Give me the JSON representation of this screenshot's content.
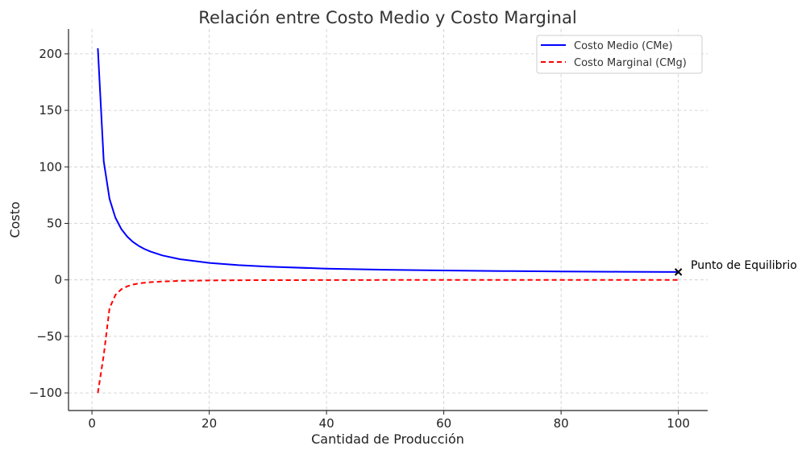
{
  "chart_data": {
    "type": "line",
    "title": "Relación entre Costo Medio y Costo Marginal",
    "xlabel": "Cantidad de Producción",
    "ylabel": "Costo",
    "xlim": [
      -4,
      105
    ],
    "ylim": [
      -115.6,
      222
    ],
    "xticks": [
      0,
      20,
      40,
      60,
      80,
      100
    ],
    "yticks": [
      -100,
      -50,
      0,
      50,
      100,
      150,
      200
    ],
    "ytick_labels": [
      "−100",
      "−50",
      "0",
      "50",
      "100",
      "150",
      "200"
    ],
    "grid": true,
    "legend_position": "top-right",
    "series": [
      {
        "name": "Costo Medio (CMe)",
        "color": "#0000ff",
        "style": "solid",
        "x": [
          1,
          2,
          3,
          4,
          5,
          6,
          7,
          8,
          9,
          10,
          12,
          15,
          20,
          25,
          30,
          40,
          50,
          60,
          70,
          80,
          90,
          100
        ],
        "y": [
          205,
          105,
          71.67,
          55,
          45,
          38.33,
          33.57,
          30,
          27.22,
          25,
          21.67,
          18.33,
          15,
          13,
          11.67,
          10,
          9,
          8.33,
          7.86,
          7.5,
          7.22,
          7
        ]
      },
      {
        "name": "Costo Marginal (CMg)",
        "color": "#ff0000",
        "style": "dashed",
        "x": [
          1,
          2,
          3,
          4,
          5,
          6,
          7,
          8,
          9,
          10,
          12,
          15,
          20,
          25,
          30,
          40,
          50,
          60,
          70,
          80,
          90,
          100
        ],
        "y": [
          -100,
          -66.67,
          -25,
          -13.33,
          -8.33,
          -5.71,
          -4.17,
          -3.17,
          -2.5,
          -2.02,
          -1.4,
          -0.89,
          -0.5,
          -0.32,
          -0.22,
          -0.13,
          -0.08,
          -0.06,
          -0.04,
          -0.03,
          -0.02,
          -0.02
        ]
      }
    ],
    "annotations": [
      {
        "text": "Punto de Equilibrio",
        "x": 100,
        "y": 7,
        "marker": "x",
        "color": "#000000"
      }
    ]
  }
}
